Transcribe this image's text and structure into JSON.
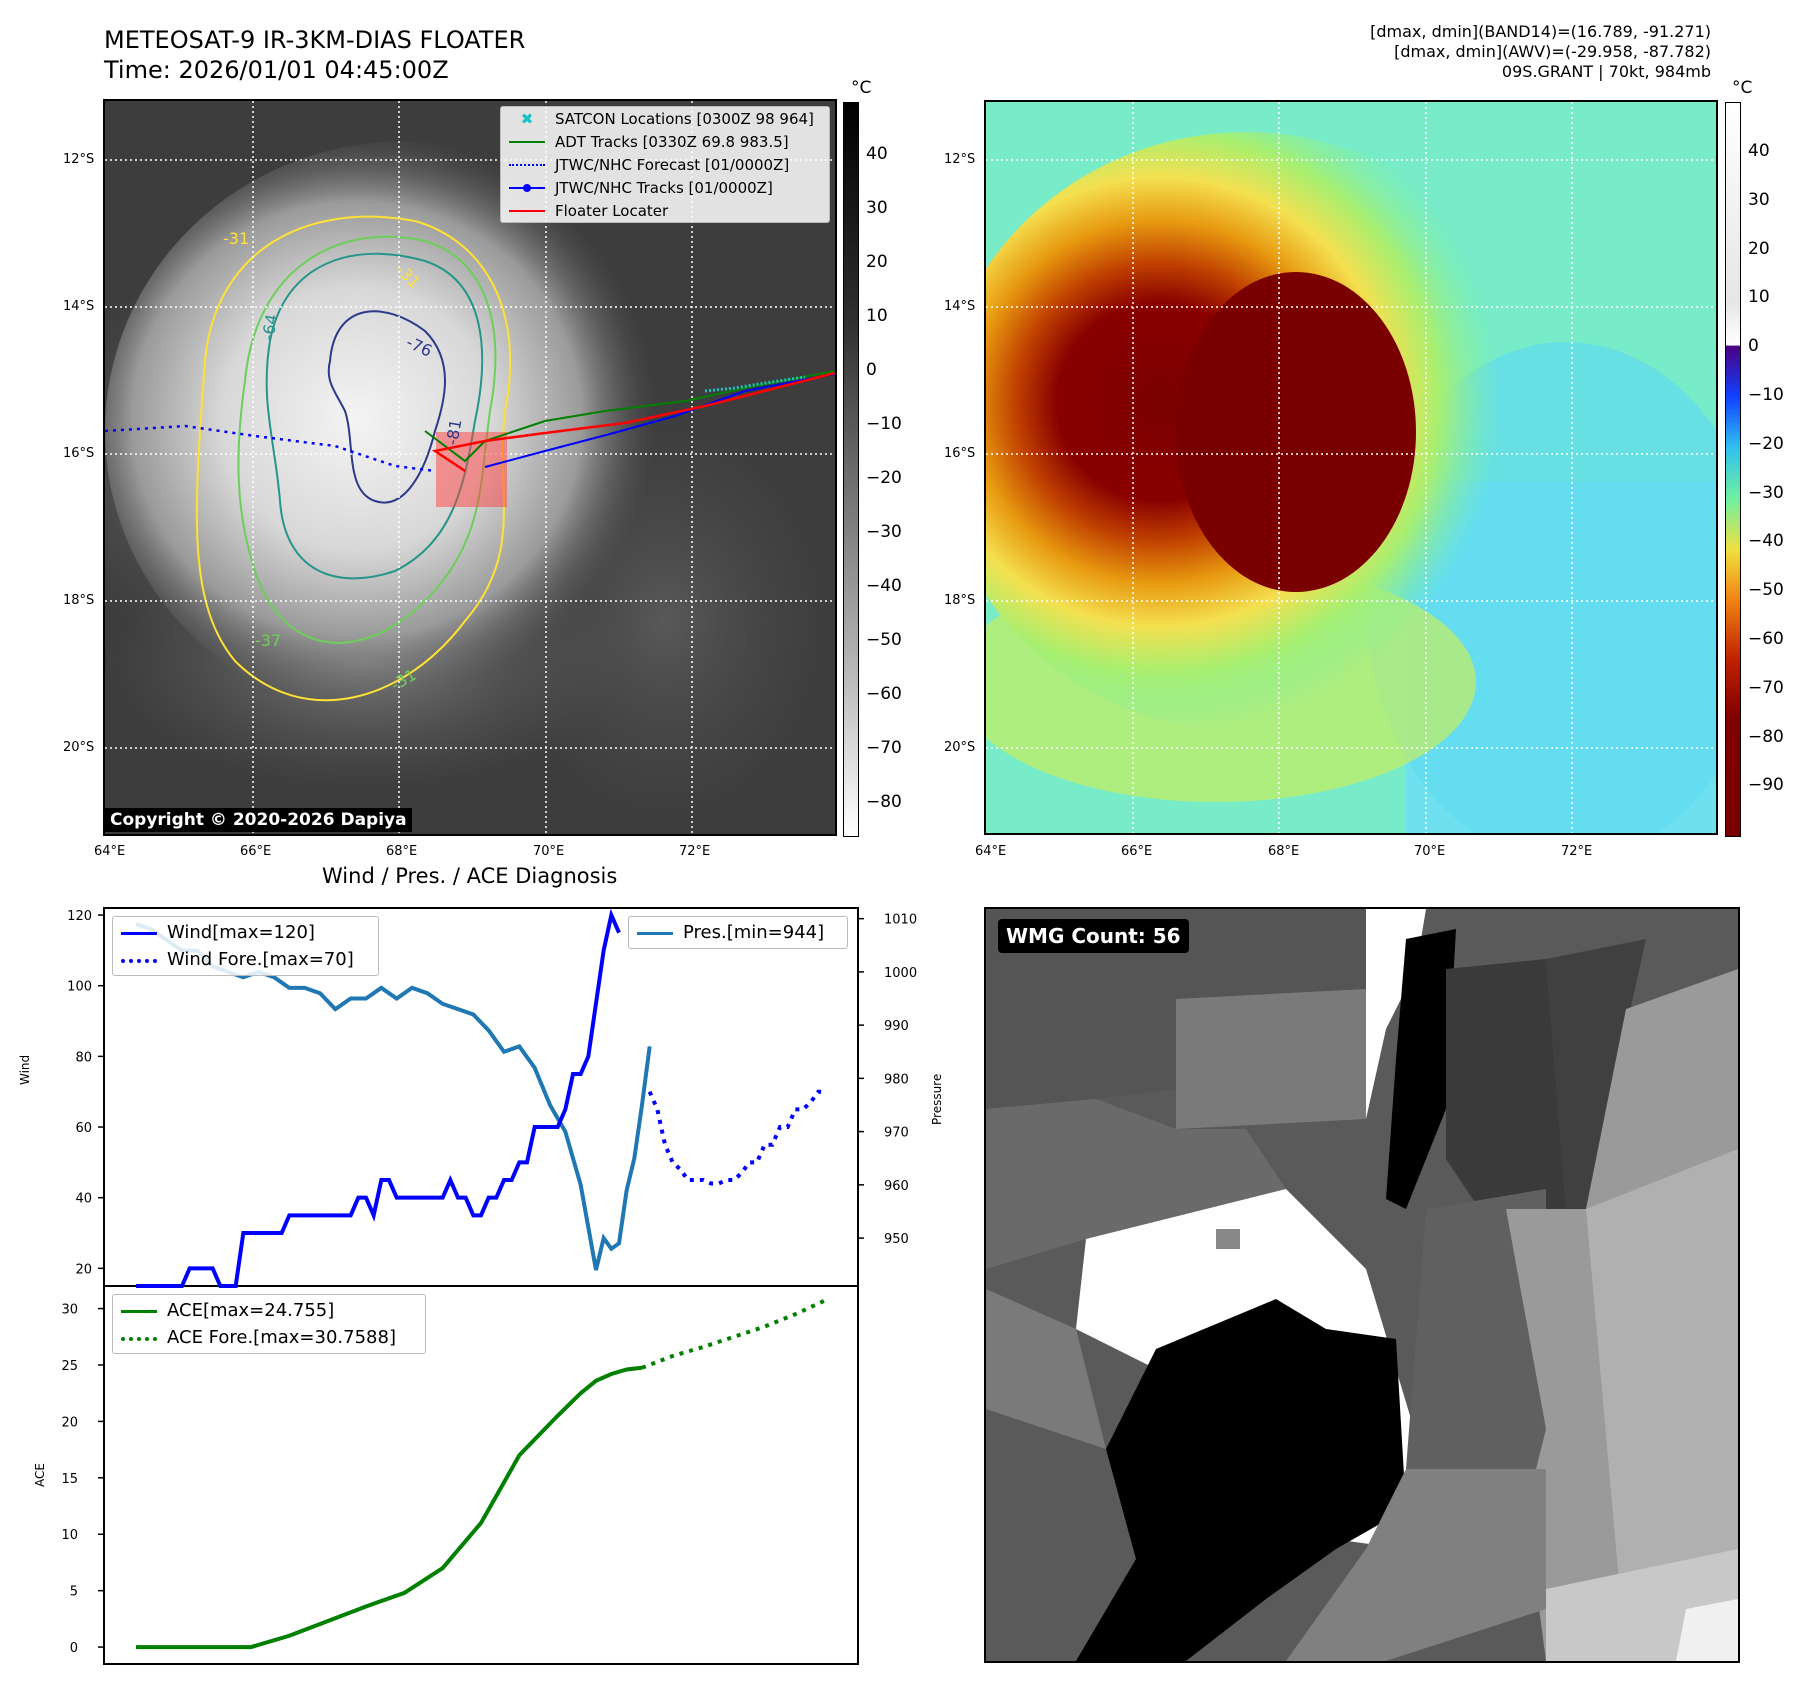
{
  "header": {
    "title_line1": "METEOSAT-9 IR-3KM-DIAS FLOATER",
    "title_line2": "Time: 2026/01/01 04:45:00Z",
    "info_line1": "[dmax, dmin](BAND14)=(16.789, -91.271)",
    "info_line2": "[dmax, dmin](AWV)=(-29.958, -87.782)",
    "info_line3": "09S.GRANT | 70kt, 984mb"
  },
  "map": {
    "lon_ticks": [
      "64°E",
      "66°E",
      "68°E",
      "70°E",
      "72°E"
    ],
    "lat_ticks": [
      "12°S",
      "14°S",
      "16°S",
      "18°S",
      "20°S"
    ],
    "copyright": "Copyright © 2020-2026 Dapiya",
    "contour_labels": [
      "-31",
      "-64",
      "-76",
      "-81",
      "-31",
      "-37",
      "-31"
    ],
    "legend": [
      "SATCON Locations [0300Z 98 964]",
      "ADT Tracks [0330Z 69.8 983.5]",
      "JTWC/NHC Forecast [01/0000Z]",
      "JTWC/NHC Tracks [01/0000Z]",
      "Floater Locater"
    ],
    "colorbar_unit": "°C",
    "gray_cb_ticks": [
      "40",
      "30",
      "20",
      "10",
      "0",
      "−10",
      "−20",
      "−30",
      "−40",
      "−50",
      "−60",
      "−70",
      "−80"
    ],
    "color_cb_ticks": [
      "40",
      "30",
      "20",
      "10",
      "0",
      "−10",
      "−20",
      "−30",
      "−40",
      "−50",
      "−60",
      "−70",
      "−80",
      "−90"
    ],
    "colors": {
      "contour_yellow": "#ffe135",
      "contour_green": "#6ccf5a",
      "contour_teal": "#26958a",
      "contour_navy": "#2c3a8a",
      "track_red": "#ff0000",
      "track_blue": "#0000ff",
      "satcon": "#19c2c2",
      "adt": "#008000"
    }
  },
  "diag": {
    "title": "Wind / Pres. / ACE Diagnosis",
    "wind_ylabel": "Wind",
    "pres_ylabel": "Pressure",
    "ace_ylabel": "ACE",
    "legend_wind": "Wind[max=120]",
    "legend_wind_fore": "Wind Fore.[max=70]",
    "legend_pres": "Pres.[min=944]",
    "legend_ace": "ACE[max=24.755]",
    "legend_ace_fore": "ACE Fore.[max=30.7588]",
    "wmg": "WMG Count: 56"
  },
  "chart_data": [
    {
      "type": "line",
      "title": "Wind / Pres. / ACE Diagnosis",
      "ylabel": "Wind",
      "ylim": [
        15,
        122
      ],
      "yticks": [
        20,
        40,
        60,
        80,
        100,
        120
      ],
      "series": [
        {
          "name": "Wind[max=120]",
          "style": "solid",
          "color": "#0000ff",
          "x": [
            0,
            1,
            2,
            3,
            4,
            5,
            6,
            7,
            8,
            9,
            10,
            11,
            12,
            13,
            14,
            15,
            16,
            17,
            18,
            19,
            20,
            21,
            22,
            23,
            24,
            25,
            26,
            27,
            28,
            29,
            30,
            31,
            32,
            33,
            34,
            35,
            36,
            37,
            38,
            39,
            40,
            41,
            42,
            43,
            44,
            45,
            46,
            47,
            48,
            49,
            50,
            51,
            52,
            53,
            54,
            55,
            56,
            57,
            58,
            59,
            60,
            61,
            62,
            63
          ],
          "values": [
            15,
            15,
            15,
            15,
            15,
            15,
            15,
            20,
            20,
            20,
            20,
            15,
            15,
            15,
            30,
            30,
            30,
            30,
            30,
            30,
            35,
            35,
            35,
            35,
            35,
            35,
            35,
            35,
            35,
            40,
            40,
            35,
            45,
            45,
            40,
            40,
            40,
            40,
            40,
            40,
            40,
            45,
            40,
            40,
            35,
            35,
            40,
            40,
            45,
            45,
            50,
            50,
            60,
            60,
            60,
            60,
            65,
            75,
            75,
            80,
            95,
            110,
            120,
            115
          ]
        },
        {
          "name": "Wind Fore.[max=70]",
          "style": "dotted",
          "color": "#0000ff",
          "x": [
            67,
            68,
            69,
            70,
            71,
            72,
            73,
            74,
            75,
            76,
            77,
            78,
            79,
            80,
            81,
            82,
            83,
            84,
            85,
            86,
            87,
            88,
            89,
            90
          ],
          "values": [
            70,
            65,
            55,
            50,
            48,
            45,
            45,
            45,
            44,
            44,
            45,
            45,
            47,
            50,
            50,
            55,
            55,
            60,
            60,
            65,
            65,
            67,
            70,
            70
          ]
        },
        {
          "name": "Pres.[min=944]",
          "style": "solid",
          "color": "#1f77b4",
          "axis": "right",
          "ylim": [
            941,
            1012
          ],
          "x": [
            0,
            2,
            4,
            6,
            8,
            10,
            12,
            14,
            16,
            18,
            20,
            22,
            24,
            26,
            28,
            30,
            32,
            34,
            36,
            38,
            40,
            42,
            44,
            46,
            48,
            50,
            52,
            54,
            56,
            58,
            60,
            61,
            62,
            63,
            64,
            65,
            66,
            67
          ],
          "values": [
            1009,
            1008,
            1006,
            1004,
            1004,
            1001,
            1000,
            999,
            1000,
            999,
            997,
            997,
            996,
            993,
            995,
            995,
            997,
            995,
            997,
            996,
            994,
            993,
            992,
            989,
            985,
            986,
            982,
            975,
            970,
            960,
            944,
            950,
            948,
            949,
            959,
            965,
            975,
            986
          ]
        }
      ],
      "right_axis": {
        "label": "Pressure",
        "ticks": [
          950,
          960,
          970,
          980,
          990,
          1000,
          1010
        ]
      }
    },
    {
      "type": "line",
      "ylabel": "ACE",
      "ylim": [
        -1.5,
        32
      ],
      "yticks": [
        0,
        5,
        10,
        15,
        20,
        25,
        30
      ],
      "series": [
        {
          "name": "ACE[max=24.755]",
          "style": "solid",
          "color": "#008000",
          "x": [
            0,
            5,
            10,
            15,
            20,
            25,
            30,
            35,
            40,
            45,
            50,
            55,
            58,
            60,
            62,
            64,
            66
          ],
          "values": [
            0,
            0,
            0,
            0,
            1.0,
            2.3,
            3.6,
            4.8,
            7.0,
            11.0,
            17.0,
            20.5,
            22.5,
            23.6,
            24.2,
            24.6,
            24.755
          ]
        },
        {
          "name": "ACE Fore.[max=30.7588]",
          "style": "dotted",
          "color": "#008000",
          "x": [
            66,
            70,
            74,
            78,
            82,
            86,
            90
          ],
          "values": [
            24.755,
            25.8,
            26.6,
            27.5,
            28.4,
            29.5,
            30.7588
          ]
        }
      ]
    }
  ]
}
